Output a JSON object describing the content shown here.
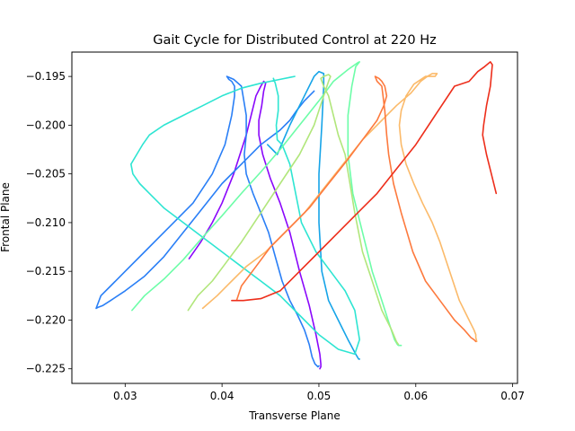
{
  "chart_data": {
    "type": "line",
    "title": "Gait Cycle for Distributed Control at 220 Hz",
    "xlabel": "Transverse Plane",
    "ylabel": "Frontal Plane",
    "xlim": [
      0.0245,
      0.0705
    ],
    "ylim": [
      -0.2265,
      -0.1925
    ],
    "xticks": [
      0.03,
      0.04,
      0.05,
      0.06,
      0.07
    ],
    "xtick_labels": [
      "0.03",
      "0.04",
      "0.05",
      "0.06",
      "0.07"
    ],
    "yticks": [
      -0.195,
      -0.2,
      -0.205,
      -0.21,
      -0.215,
      -0.22,
      -0.225
    ],
    "ytick_labels": [
      "−0.195",
      "−0.200",
      "−0.205",
      "−0.210",
      "−0.215",
      "−0.220",
      "−0.225"
    ],
    "grid": false,
    "legend": "none",
    "series": [
      {
        "color": "#8a07fb",
        "x": [
          0.0366,
          0.0378,
          0.039,
          0.04,
          0.0412,
          0.0425,
          0.0435,
          0.044,
          0.0443,
          0.0445,
          0.0443,
          0.0441,
          0.0438,
          0.0438,
          0.0442,
          0.045,
          0.046,
          0.047,
          0.048,
          0.049,
          0.0497,
          0.0501,
          0.0502,
          0.0502,
          0.0501
        ],
        "y": [
          -0.2137,
          -0.212,
          -0.21,
          -0.208,
          -0.205,
          -0.201,
          -0.197,
          -0.196,
          -0.1955,
          -0.1957,
          -0.1965,
          -0.198,
          -0.1995,
          -0.201,
          -0.203,
          -0.2055,
          -0.208,
          -0.211,
          -0.215,
          -0.2185,
          -0.2215,
          -0.2235,
          -0.2245,
          -0.2248,
          -0.225
        ]
      },
      {
        "color": "#2a7ff6",
        "x": [
          0.0495,
          0.0485,
          0.0477,
          0.047,
          0.046,
          0.044,
          0.042,
          0.04,
          0.038,
          0.036,
          0.034,
          0.032,
          0.03,
          0.0285,
          0.0277,
          0.0272,
          0.027,
          0.0275,
          0.0285,
          0.03,
          0.032,
          0.0345,
          0.037,
          0.039,
          0.0403,
          0.041,
          0.0413,
          0.0413,
          0.041,
          0.0407,
          0.0405,
          0.0412,
          0.042,
          0.0425,
          0.0425,
          0.0423,
          0.0425,
          0.0432,
          0.044,
          0.0448,
          0.0455,
          0.0462,
          0.047,
          0.0478,
          0.0485,
          0.049,
          0.0493,
          0.0496,
          0.0499,
          0.05
        ],
        "y": [
          -0.1965,
          -0.1975,
          -0.1985,
          -0.1995,
          -0.2005,
          -0.202,
          -0.204,
          -0.206,
          -0.2085,
          -0.211,
          -0.2135,
          -0.2155,
          -0.217,
          -0.218,
          -0.2185,
          -0.2187,
          -0.2188,
          -0.2175,
          -0.2165,
          -0.215,
          -0.213,
          -0.2105,
          -0.208,
          -0.205,
          -0.202,
          -0.199,
          -0.197,
          -0.196,
          -0.1955,
          -0.1953,
          -0.195,
          -0.1953,
          -0.196,
          -0.199,
          -0.201,
          -0.203,
          -0.205,
          -0.207,
          -0.209,
          -0.211,
          -0.2135,
          -0.216,
          -0.218,
          -0.2195,
          -0.221,
          -0.2225,
          -0.2238,
          -0.2245,
          -0.2248,
          -0.2247
        ]
      },
      {
        "color": "#16a4e8",
        "x": [
          0.0447,
          0.0457,
          0.047,
          0.0485,
          0.0495,
          0.05,
          0.0505,
          0.0505,
          0.0503,
          0.05,
          0.05,
          0.0503,
          0.051,
          0.052,
          0.053,
          0.0538,
          0.0541,
          0.0542
        ],
        "y": [
          -0.202,
          -0.203,
          -0.2,
          -0.197,
          -0.195,
          -0.1945,
          -0.1947,
          -0.196,
          -0.2,
          -0.205,
          -0.21,
          -0.215,
          -0.218,
          -0.22,
          -0.222,
          -0.2235,
          -0.224,
          -0.224
        ]
      },
      {
        "color": "#2ee5d2",
        "x": [
          0.0453,
          0.0455,
          0.0458,
          0.0458,
          0.0456,
          0.0457,
          0.0462,
          0.047,
          0.0482,
          0.0497,
          0.0512,
          0.0527,
          0.0537,
          0.0542,
          0.0537,
          0.052,
          0.05,
          0.048,
          0.046,
          0.044,
          0.042,
          0.04,
          0.038,
          0.036,
          0.034,
          0.0325,
          0.0315,
          0.0308,
          0.0306,
          0.0312,
          0.0318,
          0.0325,
          0.034,
          0.036,
          0.038,
          0.04,
          0.042,
          0.044,
          0.046,
          0.047,
          0.0475
        ],
        "y": [
          -0.1952,
          -0.1957,
          -0.197,
          -0.1985,
          -0.2,
          -0.2015,
          -0.202,
          -0.204,
          -0.21,
          -0.213,
          -0.215,
          -0.217,
          -0.219,
          -0.222,
          -0.2235,
          -0.223,
          -0.2215,
          -0.2195,
          -0.2175,
          -0.216,
          -0.2145,
          -0.213,
          -0.2115,
          -0.21,
          -0.2085,
          -0.207,
          -0.206,
          -0.205,
          -0.204,
          -0.203,
          -0.202,
          -0.201,
          -0.2,
          -0.199,
          -0.198,
          -0.197,
          -0.1962,
          -0.1957,
          -0.1953,
          -0.1951,
          -0.195
        ]
      },
      {
        "color": "#6dfda8",
        "x": [
          0.0307,
          0.032,
          0.034,
          0.036,
          0.038,
          0.04,
          0.042,
          0.044,
          0.046,
          0.048,
          0.05,
          0.0515,
          0.053,
          0.054,
          0.0542,
          0.0538,
          0.0534,
          0.053,
          0.053,
          0.0535,
          0.0545,
          0.0555,
          0.0565,
          0.0573,
          0.0578,
          0.0581,
          0.0582,
          0.0585
        ],
        "y": [
          -0.219,
          -0.2175,
          -0.2158,
          -0.2138,
          -0.2115,
          -0.2093,
          -0.207,
          -0.2048,
          -0.2025,
          -0.2,
          -0.1975,
          -0.1955,
          -0.1943,
          -0.1936,
          -0.1935,
          -0.194,
          -0.196,
          -0.199,
          -0.203,
          -0.207,
          -0.211,
          -0.215,
          -0.218,
          -0.2205,
          -0.222,
          -0.2225,
          -0.2226,
          -0.2226
        ]
      },
      {
        "color": "#b1e67b",
        "x": [
          0.0365,
          0.0375,
          0.039,
          0.0405,
          0.042,
          0.044,
          0.046,
          0.048,
          0.0495,
          0.0505,
          0.051,
          0.0512,
          0.051,
          0.0505,
          0.0502,
          0.0505,
          0.051,
          0.0515,
          0.052,
          0.0527,
          0.0532,
          0.0537,
          0.0545,
          0.0555,
          0.0565,
          0.0575,
          0.058,
          0.0582
        ],
        "y": [
          -0.219,
          -0.2175,
          -0.216,
          -0.214,
          -0.212,
          -0.209,
          -0.206,
          -0.203,
          -0.2,
          -0.197,
          -0.1955,
          -0.195,
          -0.1948,
          -0.195,
          -0.1952,
          -0.196,
          -0.197,
          -0.199,
          -0.201,
          -0.203,
          -0.206,
          -0.209,
          -0.213,
          -0.216,
          -0.219,
          -0.221,
          -0.2222,
          -0.2225
        ]
      },
      {
        "color": "#fbba6a",
        "x": [
          0.038,
          0.0395,
          0.041,
          0.0425,
          0.0445,
          0.0465,
          0.0485,
          0.0505,
          0.0525,
          0.0545,
          0.0565,
          0.058,
          0.0595,
          0.0605,
          0.0612,
          0.0617,
          0.0622,
          0.062,
          0.061,
          0.0598,
          0.059,
          0.0585,
          0.0583,
          0.0585,
          0.059,
          0.0598,
          0.0607,
          0.0617,
          0.0625,
          0.0635,
          0.0645,
          0.0655,
          0.066,
          0.0662,
          0.0662,
          0.0663
        ],
        "y": [
          -0.2188,
          -0.2175,
          -0.216,
          -0.2145,
          -0.213,
          -0.211,
          -0.209,
          -0.2065,
          -0.204,
          -0.2015,
          -0.1995,
          -0.198,
          -0.1967,
          -0.1955,
          -0.195,
          -0.1947,
          -0.1947,
          -0.195,
          -0.195,
          -0.1958,
          -0.197,
          -0.1985,
          -0.2,
          -0.202,
          -0.204,
          -0.206,
          -0.208,
          -0.21,
          -0.212,
          -0.215,
          -0.218,
          -0.22,
          -0.221,
          -0.2215,
          -0.2218,
          -0.2222
        ]
      },
      {
        "color": "#fd7a3e",
        "x": [
          0.0415,
          0.042,
          0.0435,
          0.045,
          0.047,
          0.049,
          0.051,
          0.053,
          0.0545,
          0.056,
          0.0567,
          0.057,
          0.0568,
          0.0565,
          0.0562,
          0.0558,
          0.056,
          0.0565,
          0.0568,
          0.057,
          0.0572,
          0.0577,
          0.0585,
          0.0597,
          0.061,
          0.0625,
          0.064,
          0.065,
          0.0657,
          0.066,
          0.0662
        ],
        "y": [
          -0.218,
          -0.2165,
          -0.2145,
          -0.2125,
          -0.2105,
          -0.2085,
          -0.206,
          -0.2035,
          -0.2015,
          -0.1995,
          -0.198,
          -0.197,
          -0.196,
          -0.1955,
          -0.1952,
          -0.195,
          -0.1955,
          -0.196,
          -0.1985,
          -0.201,
          -0.203,
          -0.206,
          -0.209,
          -0.213,
          -0.216,
          -0.218,
          -0.22,
          -0.221,
          -0.2218,
          -0.222,
          -0.2222
        ]
      },
      {
        "color": "#ed2e1b",
        "x": [
          0.041,
          0.0422,
          0.044,
          0.046,
          0.048,
          0.05,
          0.052,
          0.054,
          0.056,
          0.058,
          0.06,
          0.062,
          0.064,
          0.0655,
          0.0664,
          0.0671,
          0.0677,
          0.0679,
          0.0677,
          0.0673,
          0.067,
          0.0669,
          0.0673,
          0.0678,
          0.0683
        ],
        "y": [
          -0.218,
          -0.218,
          -0.2178,
          -0.217,
          -0.215,
          -0.213,
          -0.211,
          -0.209,
          -0.207,
          -0.2045,
          -0.202,
          -0.199,
          -0.196,
          -0.1955,
          -0.1945,
          -0.194,
          -0.1935,
          -0.1938,
          -0.196,
          -0.198,
          -0.2,
          -0.201,
          -0.203,
          -0.205,
          -0.207
        ]
      }
    ]
  }
}
